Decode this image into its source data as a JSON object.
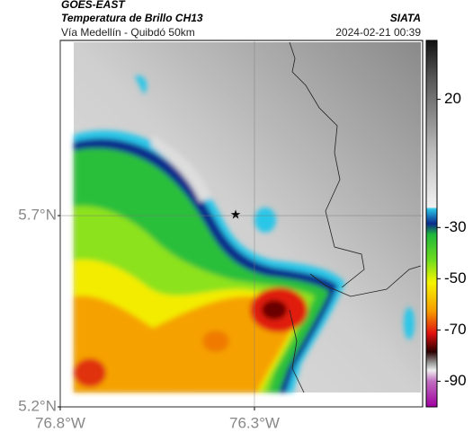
{
  "header": {
    "title": "GOES-EAST",
    "subtitle": "Temperatura de Brillo CH13",
    "source": "SIATA",
    "region": "Vía Medellín - Quibdó 50km",
    "datetime": "2024-02-21 00:39"
  },
  "map": {
    "xlim": [
      -76.8,
      -75.867
    ],
    "ylim": [
      5.2,
      6.158
    ],
    "xticks": [
      {
        "value": -76.8,
        "label": "76.8°W"
      },
      {
        "value": -76.3,
        "label": "76.3°W"
      }
    ],
    "yticks": [
      {
        "value": 5.7,
        "label": "5.7°N"
      },
      {
        "value": 5.2,
        "label": "5.2°N"
      }
    ],
    "grid": true
  },
  "colorbar": {
    "clim": [
      43,
      -100
    ],
    "ticks": [
      20,
      -30,
      -50,
      -70,
      -90
    ]
  }
}
